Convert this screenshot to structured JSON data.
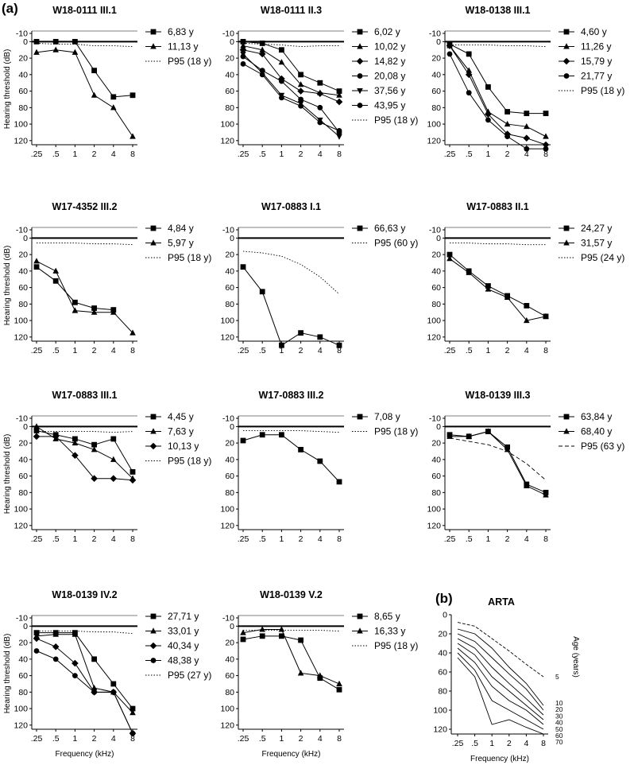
{
  "figure": {
    "label_a": "(a)",
    "label_b": "(b)",
    "ylabel": "Hearing threshold (dB)",
    "xlabel": "Frequency (kHz)",
    "x_ticks": [
      ".25",
      ".5",
      "1",
      "2",
      "4",
      "8"
    ],
    "y_ticks": [
      "-10",
      "0",
      "20",
      "40",
      "60",
      "80",
      "100",
      "120"
    ]
  },
  "chart_data": [
    {
      "type": "line",
      "title": "W18-0111 III.1",
      "x": [
        0.25,
        0.5,
        1,
        2,
        4,
        8
      ],
      "ylim": [
        -10,
        125
      ],
      "y_inverted": true,
      "series": [
        {
          "name": "6,83 y",
          "marker": "square",
          "values": [
            0,
            0,
            0,
            35,
            67,
            65
          ]
        },
        {
          "name": "11,13 y",
          "marker": "triangle",
          "values": [
            13,
            10,
            13,
            65,
            80,
            115
          ]
        },
        {
          "name": "P95 (18 y)",
          "marker": "none",
          "style": "dotted",
          "values": [
            2,
            3,
            3,
            5,
            5,
            6
          ]
        }
      ]
    },
    {
      "type": "line",
      "title": "W18-0111 II.3",
      "x": [
        0.25,
        0.5,
        1,
        2,
        4,
        8
      ],
      "ylim": [
        -10,
        125
      ],
      "y_inverted": true,
      "series": [
        {
          "name": "6,02 y",
          "marker": "square",
          "values": [
            0,
            2,
            10,
            40,
            50,
            60
          ]
        },
        {
          "name": "10,02 y",
          "marker": "triangle",
          "values": [
            5,
            10,
            25,
            52,
            62,
            65
          ]
        },
        {
          "name": "14,82 y",
          "marker": "diamond",
          "values": [
            10,
            15,
            45,
            60,
            63,
            73
          ]
        },
        {
          "name": "20,08 y",
          "marker": "circle",
          "values": [
            18,
            35,
            48,
            70,
            80,
            110
          ]
        },
        {
          "name": "37,56 y",
          "marker": "triangle-down",
          "values": [
            15,
            38,
            65,
            75,
            95,
            115
          ]
        },
        {
          "name": "43,95 y",
          "marker": "circle",
          "values": [
            27,
            40,
            68,
            78,
            98,
            108
          ]
        },
        {
          "name": "P95 (18 y)",
          "marker": "none",
          "style": "dotted",
          "values": [
            2,
            3,
            4,
            6,
            5,
            5
          ]
        }
      ]
    },
    {
      "type": "line",
      "title": "W18-0138 III.1",
      "x": [
        0.25,
        0.5,
        1,
        2,
        4,
        8
      ],
      "ylim": [
        -10,
        125
      ],
      "y_inverted": true,
      "series": [
        {
          "name": "4,60 y",
          "marker": "square",
          "values": [
            3,
            15,
            55,
            85,
            87,
            87
          ]
        },
        {
          "name": "11,26 y",
          "marker": "triangle",
          "values": [
            5,
            35,
            85,
            100,
            103,
            115
          ]
        },
        {
          "name": "15,79 y",
          "marker": "diamond",
          "values": [
            5,
            40,
            88,
            112,
            117,
            125
          ]
        },
        {
          "name": "21,77 y",
          "marker": "circle",
          "values": [
            15,
            62,
            95,
            115,
            130,
            130
          ]
        },
        {
          "name": "P95 (18 y)",
          "marker": "none",
          "style": "dotted",
          "values": [
            4,
            4,
            4,
            5,
            5,
            6
          ]
        }
      ]
    },
    {
      "type": "line",
      "title": "W17-4352 III.2",
      "x": [
        0.25,
        0.5,
        1,
        2,
        4,
        8
      ],
      "ylim": [
        -10,
        125
      ],
      "y_inverted": true,
      "series": [
        {
          "name": "4,84 y",
          "marker": "square",
          "values": [
            35,
            52,
            78,
            85,
            87,
            null
          ]
        },
        {
          "name": "5,97 y",
          "marker": "triangle",
          "values": [
            28,
            40,
            88,
            90,
            90,
            115
          ]
        },
        {
          "name": "P95 (18 y)",
          "marker": "none",
          "style": "dotted",
          "values": [
            6,
            6,
            6,
            7,
            7,
            8
          ]
        }
      ]
    },
    {
      "type": "line",
      "title": "W17-0883 I.1",
      "x": [
        0.25,
        0.5,
        1,
        2,
        4,
        8
      ],
      "ylim": [
        -10,
        125
      ],
      "y_inverted": true,
      "series": [
        {
          "name": "66,63 y",
          "marker": "square",
          "values": [
            35,
            65,
            130,
            115,
            120,
            130
          ]
        },
        {
          "name": "P95 (60 y)",
          "marker": "none",
          "style": "dotted",
          "values": [
            16,
            18,
            22,
            32,
            47,
            68
          ]
        }
      ]
    },
    {
      "type": "line",
      "title": "W17-0883 II.1",
      "x": [
        0.25,
        0.5,
        1,
        2,
        4,
        8
      ],
      "ylim": [
        -10,
        125
      ],
      "y_inverted": true,
      "series": [
        {
          "name": "24,27 y",
          "marker": "square",
          "values": [
            20,
            40,
            58,
            70,
            82,
            95
          ]
        },
        {
          "name": "31,57 y",
          "marker": "triangle",
          "values": [
            25,
            42,
            62,
            72,
            100,
            95
          ]
        },
        {
          "name": "P95 (24 y)",
          "marker": "none",
          "style": "dotted",
          "values": [
            6,
            6,
            7,
            7,
            8,
            8
          ]
        }
      ]
    },
    {
      "type": "line",
      "title": "W17-0883 III.1",
      "x": [
        0.25,
        0.5,
        1,
        2,
        4,
        8
      ],
      "ylim": [
        -10,
        125
      ],
      "y_inverted": true,
      "series": [
        {
          "name": "4,45 y",
          "marker": "square",
          "values": [
            5,
            10,
            15,
            22,
            15,
            55
          ]
        },
        {
          "name": "7,63 y",
          "marker": "triangle",
          "values": [
            0,
            15,
            20,
            28,
            40,
            63
          ]
        },
        {
          "name": "10,13 y",
          "marker": "diamond",
          "values": [
            12,
            12,
            35,
            63,
            63,
            65
          ]
        },
        {
          "name": "P95 (18 y)",
          "marker": "none",
          "style": "dotted",
          "values": [
            6,
            6,
            6,
            6,
            7,
            6
          ]
        }
      ]
    },
    {
      "type": "line",
      "title": "W17-0883 III.2",
      "x": [
        0.25,
        0.5,
        1,
        2,
        4,
        8
      ],
      "ylim": [
        -10,
        125
      ],
      "y_inverted": true,
      "series": [
        {
          "name": "7,08 y",
          "marker": "square",
          "values": [
            17,
            10,
            10,
            28,
            42,
            67
          ]
        },
        {
          "name": "P95 (18 y)",
          "marker": "none",
          "style": "dotted",
          "values": [
            5,
            5,
            5,
            5,
            6,
            7
          ]
        }
      ]
    },
    {
      "type": "line",
      "title": "W18-0139 III.3",
      "x": [
        0.25,
        0.5,
        1,
        2,
        4,
        8
      ],
      "ylim": [
        -10,
        125
      ],
      "y_inverted": true,
      "series": [
        {
          "name": "63,84 y",
          "marker": "square",
          "values": [
            10,
            12,
            6,
            25,
            70,
            80
          ]
        },
        {
          "name": "68,40 y",
          "marker": "triangle",
          "values": [
            12,
            12,
            6,
            28,
            72,
            83
          ]
        },
        {
          "name": "P95 (63 y)",
          "marker": "none",
          "style": "dashed",
          "values": [
            14,
            18,
            22,
            30,
            45,
            65
          ]
        }
      ]
    },
    {
      "type": "line",
      "title": "W18-0139 IV.2",
      "x": [
        0.25,
        0.5,
        1,
        2,
        4,
        8
      ],
      "ylim": [
        -10,
        125
      ],
      "y_inverted": true,
      "series": [
        {
          "name": "27,71 y",
          "marker": "square",
          "values": [
            8,
            8,
            8,
            40,
            70,
            100
          ]
        },
        {
          "name": "33,01 y",
          "marker": "triangle",
          "values": [
            12,
            10,
            10,
            75,
            80,
            105
          ]
        },
        {
          "name": "40,34 y",
          "marker": "diamond",
          "values": [
            15,
            25,
            45,
            80,
            80,
            130
          ]
        },
        {
          "name": "48,38 y",
          "marker": "circle",
          "values": [
            30,
            40,
            60,
            80,
            80,
            130
          ]
        },
        {
          "name": "P95 (27 y)",
          "marker": "none",
          "style": "dotted",
          "values": [
            6,
            6,
            6,
            7,
            7,
            9
          ]
        }
      ]
    },
    {
      "type": "line",
      "title": "W18-0139 V.2",
      "x": [
        0.25,
        0.5,
        1,
        2,
        4,
        8
      ],
      "ylim": [
        -10,
        125
      ],
      "y_inverted": true,
      "series": [
        {
          "name": "8,65 y",
          "marker": "square",
          "values": [
            16,
            12,
            12,
            17,
            63,
            77
          ]
        },
        {
          "name": "16,33 y",
          "marker": "triangle",
          "values": [
            8,
            4,
            4,
            57,
            60,
            70
          ]
        },
        {
          "name": "P95 (18 y)",
          "marker": "none",
          "style": "dotted",
          "values": [
            5,
            5,
            5,
            5,
            5,
            6
          ]
        }
      ]
    },
    {
      "type": "line",
      "title": "ARTA",
      "x": [
        0.25,
        0.5,
        1,
        2,
        4,
        8
      ],
      "ylim": [
        0,
        125
      ],
      "y_inverted": true,
      "y_ticks": [
        "0",
        "20",
        "40",
        "60",
        "80",
        "100",
        "120"
      ],
      "right_axis_label": "Age (years)",
      "series": [
        {
          "name": "5",
          "values": [
            8,
            12,
            25,
            38,
            52,
            65
          ]
        },
        {
          "name": "10",
          "values": [
            15,
            20,
            35,
            55,
            72,
            95
          ]
        },
        {
          "name": "20",
          "values": [
            20,
            28,
            45,
            62,
            78,
            100
          ]
        },
        {
          "name": "30",
          "values": [
            25,
            35,
            55,
            72,
            88,
            105
          ]
        },
        {
          "name": "40",
          "values": [
            30,
            42,
            65,
            80,
            95,
            110
          ]
        },
        {
          "name": "50",
          "values": [
            35,
            50,
            75,
            90,
            100,
            115
          ]
        },
        {
          "name": "60",
          "values": [
            40,
            58,
            90,
            100,
            110,
            120
          ]
        },
        {
          "name": "70",
          "values": [
            45,
            65,
            115,
            110,
            118,
            125
          ]
        }
      ]
    }
  ]
}
